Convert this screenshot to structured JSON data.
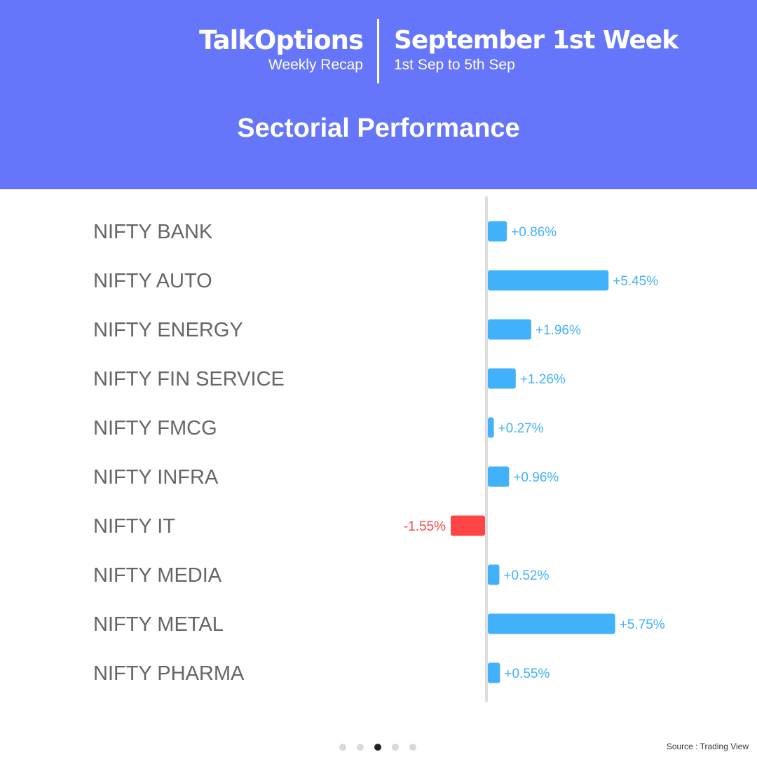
{
  "header": {
    "brand_name": "TalkOptions",
    "brand_subtitle": "Weekly Recap",
    "week_title": "September 1st Week",
    "week_dates": "1st Sep to 5th Sep",
    "section_title": "Sectorial Performance"
  },
  "colors": {
    "header_bg": "#6676fb",
    "positive": "#42b1fc",
    "negative": "#fe4444",
    "label_text": "#666666",
    "axis": "#dddddd"
  },
  "chart_data": {
    "type": "bar",
    "orientation": "horizontal",
    "categories": [
      "NIFTY BANK",
      "NIFTY AUTO",
      "NIFTY ENERGY",
      "NIFTY FIN SERVICE",
      "NIFTY FMCG",
      "NIFTY INFRA",
      "NIFTY IT",
      "NIFTY MEDIA",
      "NIFTY METAL",
      "NIFTY PHARMA"
    ],
    "values": [
      0.86,
      5.45,
      1.96,
      1.26,
      0.27,
      0.96,
      -1.55,
      0.52,
      5.75,
      0.55
    ],
    "data_labels": [
      "+0.86%",
      "+5.45%",
      "+1.96%",
      "+1.26%",
      "+0.27%",
      "+0.96%",
      "-1.55%",
      "+0.52%",
      "+5.75%",
      "+0.55%"
    ],
    "unit": "%"
  },
  "pagination": {
    "total": 5,
    "active_index": 2
  },
  "source_text": "Source : Trading View"
}
